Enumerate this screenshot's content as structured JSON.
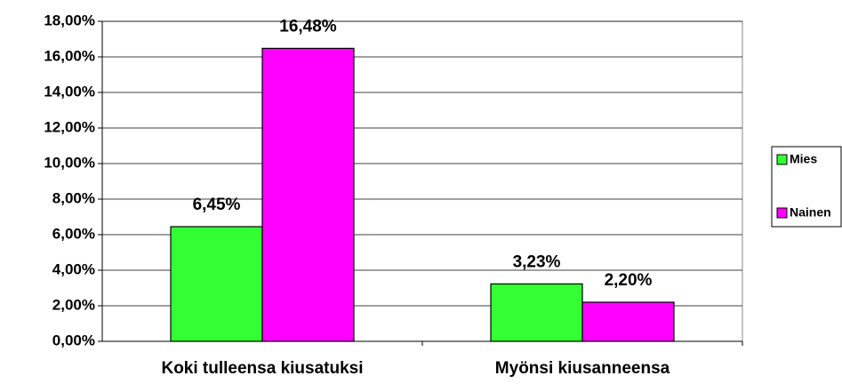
{
  "chart_data": {
    "type": "bar",
    "categories": [
      "Koki tulleensa kiusatuksi",
      "Myönsi kiusanneensa"
    ],
    "series": [
      {
        "name": "Mies",
        "color": "#33ff33",
        "values": [
          6.45,
          3.23
        ],
        "value_labels": [
          "6,45%",
          "3,23%"
        ]
      },
      {
        "name": "Nainen",
        "color": "#ff00ff",
        "values": [
          16.48,
          2.2
        ],
        "value_labels": [
          "16,48%",
          "2,20%"
        ]
      }
    ],
    "ylim": [
      0,
      18
    ],
    "yticks": [
      {
        "value": 0,
        "label": "0,00%"
      },
      {
        "value": 2,
        "label": "2,00%"
      },
      {
        "value": 4,
        "label": "4,00%"
      },
      {
        "value": 6,
        "label": "6,00%"
      },
      {
        "value": 8,
        "label": "8,00%"
      },
      {
        "value": 10,
        "label": "10,00%"
      },
      {
        "value": 12,
        "label": "12,00%"
      },
      {
        "value": 14,
        "label": "14,00%"
      },
      {
        "value": 16,
        "label": "16,00%"
      },
      {
        "value": 18,
        "label": "18,00%"
      }
    ],
    "grid": true,
    "legend": "right"
  }
}
